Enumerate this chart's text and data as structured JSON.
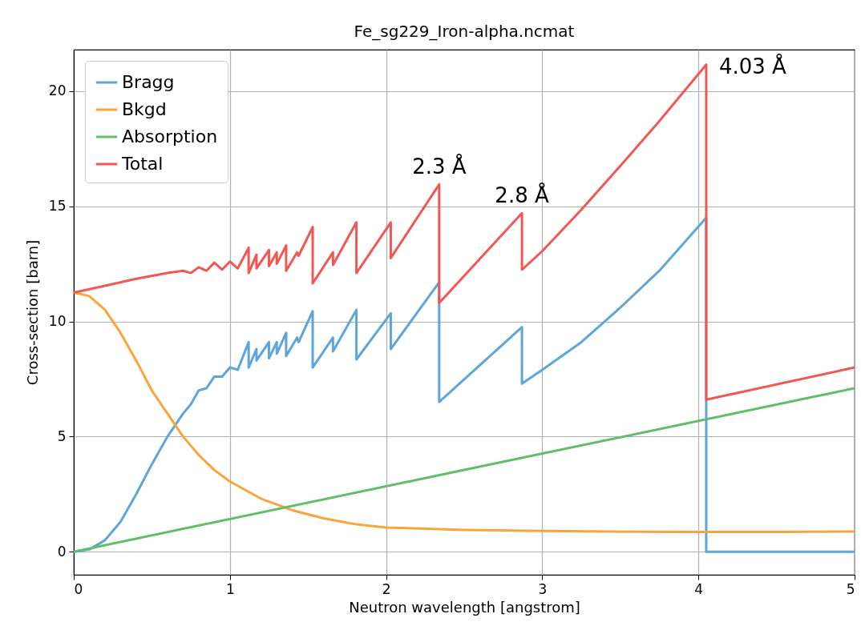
{
  "chart_data": {
    "type": "line",
    "title": "Fe_sg229_Iron-alpha.ncmat",
    "xlabel": "Neutron wavelength [angstrom]",
    "ylabel": "Cross-section [barn]",
    "xlim": [
      0,
      5
    ],
    "xticks": [
      0,
      1,
      2,
      3,
      4,
      5
    ],
    "ylim": [
      -1.0,
      21.8
    ],
    "yticks": [
      0,
      5,
      10,
      15,
      20
    ],
    "grid": true,
    "legend": "top left",
    "line_style": "solid",
    "series": [
      {
        "name": "Bragg",
        "color": "#5da5da",
        "x": [
          0,
          0.1,
          0.2,
          0.3,
          0.4,
          0.5,
          0.6,
          0.7,
          0.75,
          0.8,
          0.85,
          0.9,
          0.95,
          1.0,
          1.05,
          1.12,
          1.12,
          1.17,
          1.17,
          1.25,
          1.25,
          1.3,
          1.3,
          1.36,
          1.36,
          1.43,
          1.44,
          1.53,
          1.53,
          1.66,
          1.66,
          1.81,
          1.81,
          2.03,
          2.03,
          2.34,
          2.34,
          2.87,
          2.87,
          3.0,
          3.25,
          3.5,
          3.75,
          4.05,
          4.05,
          5
        ],
        "values": [
          0,
          0.1,
          0.5,
          1.3,
          2.5,
          3.8,
          5.0,
          6.0,
          6.4,
          7.0,
          7.1,
          7.6,
          7.6,
          8.0,
          7.9,
          9.1,
          8.0,
          8.8,
          8.3,
          9.1,
          8.4,
          9.1,
          8.6,
          9.5,
          8.5,
          9.3,
          9.1,
          10.45,
          8.0,
          9.3,
          8.7,
          10.5,
          8.35,
          10.35,
          8.8,
          11.7,
          6.5,
          9.75,
          7.3,
          7.9,
          9.1,
          10.6,
          12.2,
          14.5,
          0,
          0
        ]
      },
      {
        "name": "Bkgd",
        "color": "#faa43a",
        "x": [
          0,
          0.1,
          0.2,
          0.3,
          0.4,
          0.5,
          0.6,
          0.7,
          0.8,
          0.9,
          1.0,
          1.2,
          1.4,
          1.6,
          1.8,
          2.0,
          2.5,
          3.0,
          3.5,
          4.0,
          4.5,
          5.0
        ],
        "values": [
          11.25,
          11.1,
          10.5,
          9.5,
          8.3,
          7.0,
          6.0,
          5.0,
          4.2,
          3.55,
          3.05,
          2.3,
          1.8,
          1.45,
          1.2,
          1.05,
          0.95,
          0.9,
          0.87,
          0.86,
          0.86,
          0.88
        ]
      },
      {
        "name": "Absorption",
        "color": "#60bd68",
        "x": [
          0,
          2.5,
          5
        ],
        "values": [
          0,
          3.55,
          7.1
        ]
      },
      {
        "name": "Total",
        "color": "#f15854",
        "x": [
          0,
          0.2,
          0.4,
          0.6,
          0.7,
          0.75,
          0.8,
          0.85,
          0.9,
          0.95,
          1.0,
          1.05,
          1.12,
          1.12,
          1.17,
          1.17,
          1.25,
          1.25,
          1.3,
          1.3,
          1.36,
          1.36,
          1.43,
          1.44,
          1.53,
          1.53,
          1.66,
          1.66,
          1.81,
          1.81,
          2.03,
          2.03,
          2.34,
          2.34,
          2.87,
          2.87,
          3.0,
          3.25,
          3.5,
          3.75,
          4.05,
          4.05,
          5
        ],
        "values": [
          11.25,
          11.55,
          11.85,
          12.1,
          12.2,
          12.1,
          12.35,
          12.2,
          12.55,
          12.25,
          12.6,
          12.3,
          13.2,
          12.1,
          12.9,
          12.3,
          13.1,
          12.4,
          13.0,
          12.5,
          13.3,
          12.2,
          13.0,
          12.85,
          14.1,
          11.65,
          13.0,
          12.45,
          14.3,
          12.1,
          14.3,
          12.75,
          15.95,
          10.8,
          14.7,
          12.25,
          13.05,
          14.85,
          16.75,
          18.7,
          21.15,
          6.6,
          8.0
        ]
      }
    ],
    "annotations": [
      {
        "text": "2.3 Å",
        "x": 2.34,
        "y": 15.95
      },
      {
        "text": "2.8 Å",
        "x": 2.87,
        "y": 14.7
      },
      {
        "text": "4.03 Å",
        "x": 4.05,
        "y": 21.15
      }
    ]
  }
}
